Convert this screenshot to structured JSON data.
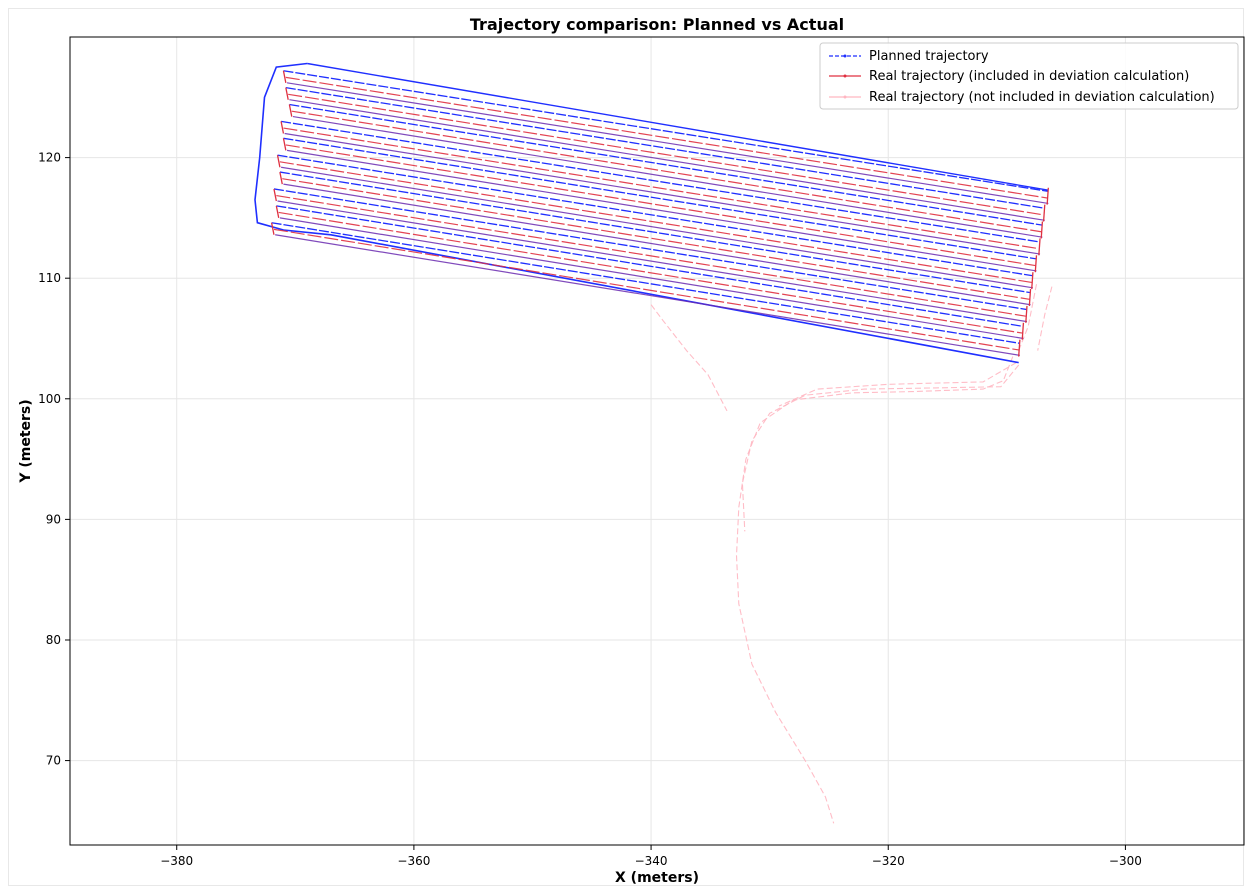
{
  "chart_data": {
    "type": "line",
    "title": "Trajectory comparison: Planned vs Actual",
    "xlabel": "X (meters)",
    "ylabel": "Y (meters)",
    "xlim": [
      -389,
      -290
    ],
    "ylim": [
      63,
      130
    ],
    "xticks": [
      -380,
      -360,
      -340,
      -320,
      -300
    ],
    "yticks": [
      70,
      80,
      90,
      100,
      110,
      120
    ],
    "xtick_labels": [
      "−380",
      "−360",
      "−340",
      "−320",
      "−300"
    ],
    "ytick_labels": [
      "70",
      "80",
      "90",
      "100",
      "110",
      "120"
    ],
    "grid": true,
    "legend_position": "top-right",
    "series": [
      {
        "name": "Planned trajectory",
        "color": "#1f2fff",
        "style": "dashed",
        "rows": [
          {
            "x1": -371.0,
            "y1": 127.2,
            "x2": -306.5,
            "y2": 117.2
          },
          {
            "x1": -370.8,
            "y1": 125.8,
            "x2": -306.8,
            "y2": 115.8
          },
          {
            "x1": -370.5,
            "y1": 124.4,
            "x2": -307.0,
            "y2": 114.4
          },
          {
            "x1": -371.2,
            "y1": 123.0,
            "x2": -307.2,
            "y2": 113.0
          },
          {
            "x1": -371.0,
            "y1": 121.6,
            "x2": -307.5,
            "y2": 111.6
          },
          {
            "x1": -371.5,
            "y1": 120.2,
            "x2": -307.8,
            "y2": 110.2
          },
          {
            "x1": -371.3,
            "y1": 118.8,
            "x2": -308.0,
            "y2": 108.8
          },
          {
            "x1": -371.8,
            "y1": 117.4,
            "x2": -308.3,
            "y2": 107.4
          },
          {
            "x1": -371.6,
            "y1": 116.0,
            "x2": -308.6,
            "y2": 106.0
          },
          {
            "x1": -372.0,
            "y1": 114.6,
            "x2": -308.9,
            "y2": 104.6
          }
        ],
        "outer_loop": [
          {
            "x": -369.0,
            "y": 127.8
          },
          {
            "x": -371.6,
            "y": 127.5
          },
          {
            "x": -372.6,
            "y": 125.0
          },
          {
            "x": -373.0,
            "y": 120.0
          },
          {
            "x": -373.4,
            "y": 116.5
          },
          {
            "x": -373.2,
            "y": 114.6
          },
          {
            "x": -371.0,
            "y": 114.0
          },
          {
            "x": -367.0,
            "y": 113.6
          },
          {
            "x": -309.0,
            "y": 103.0
          }
        ],
        "top_line": [
          {
            "x": -369.0,
            "y": 127.8
          },
          {
            "x": -306.5,
            "y": 117.3
          }
        ]
      },
      {
        "name": "Real trajectory (included in deviation calculation)",
        "color": "#e03040",
        "style": "solid"
      },
      {
        "name": "Real trajectory (not included in deviation calculation)",
        "color": "#ffb6c1",
        "style": "solid",
        "paths": [
          [
            {
              "x": -309.5,
              "y": 103.5
            },
            {
              "x": -310.3,
              "y": 101.5
            },
            {
              "x": -312.0,
              "y": 100.8
            },
            {
              "x": -318.0,
              "y": 100.6
            },
            {
              "x": -323.0,
              "y": 100.5
            },
            {
              "x": -328.0,
              "y": 99.9
            },
            {
              "x": -330.8,
              "y": 98.0
            },
            {
              "x": -332.0,
              "y": 95.0
            },
            {
              "x": -332.6,
              "y": 91.0
            },
            {
              "x": -332.8,
              "y": 87.0
            },
            {
              "x": -332.6,
              "y": 83.0
            },
            {
              "x": -331.5,
              "y": 78.0
            },
            {
              "x": -329.5,
              "y": 74.0
            },
            {
              "x": -327.0,
              "y": 70.0
            },
            {
              "x": -325.3,
              "y": 67.0
            },
            {
              "x": -324.6,
              "y": 64.8
            }
          ],
          [
            {
              "x": -309.0,
              "y": 102.8
            },
            {
              "x": -310.5,
              "y": 101.0
            },
            {
              "x": -316.0,
              "y": 100.9
            },
            {
              "x": -322.0,
              "y": 100.8
            },
            {
              "x": -327.0,
              "y": 100.3
            },
            {
              "x": -330.0,
              "y": 98.8
            },
            {
              "x": -331.5,
              "y": 96.5
            },
            {
              "x": -332.3,
              "y": 93.0
            },
            {
              "x": -332.1,
              "y": 89.0
            }
          ],
          [
            {
              "x": -340.0,
              "y": 107.8
            },
            {
              "x": -339.0,
              "y": 106.5
            },
            {
              "x": -337.0,
              "y": 104.0
            },
            {
              "x": -335.2,
              "y": 102.0
            },
            {
              "x": -333.6,
              "y": 99.0
            }
          ],
          [
            {
              "x": -309.2,
              "y": 103.0
            },
            {
              "x": -312.0,
              "y": 101.4
            },
            {
              "x": -320.0,
              "y": 101.2
            },
            {
              "x": -326.0,
              "y": 100.8
            },
            {
              "x": -329.2,
              "y": 99.4
            }
          ],
          [
            {
              "x": -307.5,
              "y": 109.5
            },
            {
              "x": -308.2,
              "y": 106.0
            },
            {
              "x": -309.0,
              "y": 104.0
            }
          ],
          [
            {
              "x": -306.2,
              "y": 109.3
            },
            {
              "x": -306.8,
              "y": 107.0
            },
            {
              "x": -307.4,
              "y": 104.0
            }
          ]
        ]
      }
    ]
  }
}
